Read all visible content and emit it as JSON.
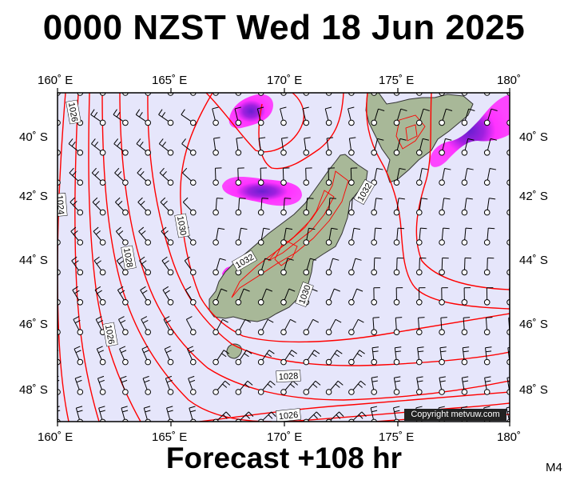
{
  "title": "0000 NZST Wed 18 Jun 2025",
  "forecast": "Forecast +108 hr",
  "map_tag": "M4",
  "copyright": "Copyright metvuw.com",
  "lon_labels": [
    "160˚ E",
    "165˚ E",
    "170˚ E",
    "175˚ E",
    "180˚"
  ],
  "lat_labels": [
    "40˚ S",
    "42˚ S",
    "44˚ S",
    "46˚ S",
    "48˚ S"
  ],
  "isobar_labels": [
    "1026",
    "1024",
    "1028",
    "1030",
    "1032",
    "1030",
    "1032",
    "1026",
    "1028",
    "1026"
  ],
  "colors": {
    "background": "#e6e6fb",
    "isobar": "#ff0000",
    "land": "#a8b898",
    "rain_light": "#ff33ff",
    "rain_heavy": "#7722cc"
  }
}
